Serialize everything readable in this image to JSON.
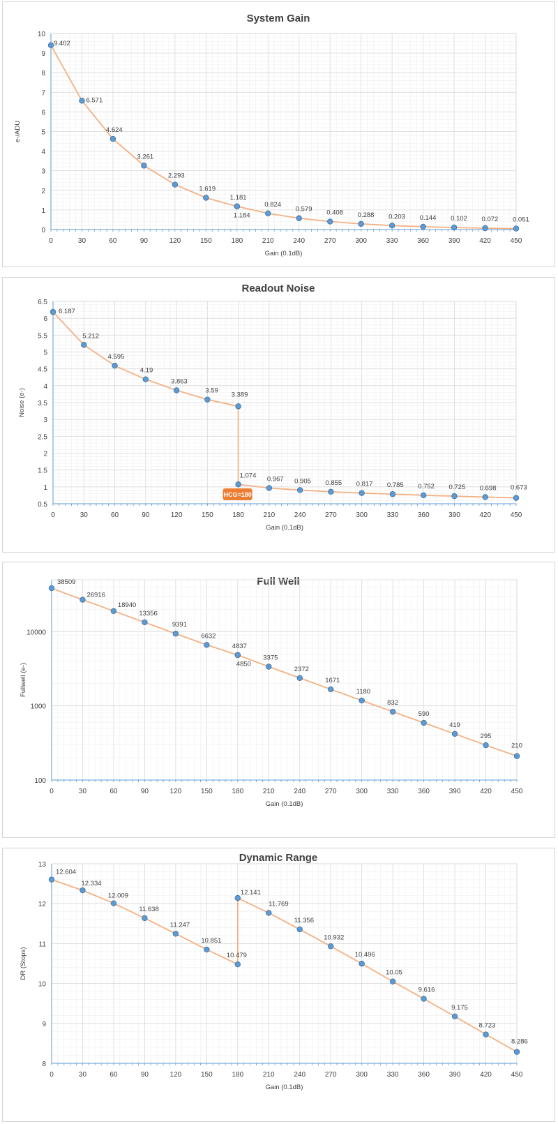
{
  "chart_data": [
    {
      "type": "line",
      "title": "System Gain",
      "xlabel": "Gain (0.1dB)",
      "ylabel": "e-/ADU",
      "x": [
        0,
        30,
        60,
        90,
        120,
        150,
        180,
        180,
        210,
        240,
        270,
        300,
        330,
        360,
        390,
        420,
        450
      ],
      "series": [
        {
          "values": [
            9.402,
            6.571,
            4.624,
            3.261,
            2.293,
            1.619,
            1.181,
            1.184,
            0.824,
            0.579,
            0.408,
            0.288,
            0.203,
            0.144,
            0.102,
            0.072,
            0.051
          ]
        }
      ],
      "xticks": [
        "0",
        "30",
        "60",
        "90",
        "120",
        "150",
        "180",
        "210",
        "240",
        "270",
        "300",
        "330",
        "360",
        "390",
        "420",
        "450"
      ],
      "yticks": [
        "0",
        "1",
        "2",
        "3",
        "4",
        "5",
        "6",
        "7",
        "8",
        "9",
        "10"
      ],
      "ylim": [
        0,
        10
      ],
      "xlim": [
        0,
        450
      ],
      "scale": "linear",
      "grid": true
    },
    {
      "type": "line",
      "title": "Readout Noise",
      "xlabel": "Gain (0.1dB)",
      "ylabel": "Noise (e-)",
      "x": [
        0,
        30,
        60,
        90,
        120,
        150,
        180,
        180,
        210,
        240,
        270,
        300,
        330,
        360,
        390,
        420,
        450
      ],
      "series": [
        {
          "values": [
            6.187,
            5.212,
            4.595,
            4.19,
            3.863,
            3.59,
            3.389,
            1.074,
            0.967,
            0.905,
            0.855,
            0.817,
            0.785,
            0.752,
            0.725,
            0.698,
            0.673
          ]
        }
      ],
      "xticks": [
        "0",
        "30",
        "60",
        "90",
        "120",
        "150",
        "180",
        "210",
        "240",
        "270",
        "300",
        "330",
        "360",
        "390",
        "420",
        "450"
      ],
      "yticks": [
        "0.5",
        "1",
        "1.5",
        "2",
        "2.5",
        "3",
        "3.5",
        "4",
        "4.5",
        "5",
        "5.5",
        "6",
        "6.5"
      ],
      "ylim": [
        0.5,
        6.5
      ],
      "xlim": [
        0,
        450
      ],
      "scale": "linear",
      "grid": true,
      "annotation": {
        "text": "HCG=180",
        "x": 180,
        "color": "#ED7D31"
      }
    },
    {
      "type": "line",
      "title": "Full Well",
      "xlabel": "Gain (0.1dB)",
      "ylabel": "Fullwell (e-)",
      "x": [
        0,
        30,
        60,
        90,
        120,
        150,
        180,
        180,
        210,
        240,
        270,
        300,
        330,
        360,
        390,
        420,
        450
      ],
      "series": [
        {
          "values": [
            38509,
            26916,
            18940,
            13356,
            9391,
            6632,
            4837,
            4850,
            3375,
            2372,
            1671,
            1180,
            832,
            590,
            419,
            295,
            210
          ]
        }
      ],
      "xticks": [
        "0",
        "30",
        "60",
        "90",
        "120",
        "150",
        "180",
        "210",
        "240",
        "270",
        "300",
        "330",
        "360",
        "390",
        "420",
        "450"
      ],
      "yticks": [
        "100",
        "1000",
        "10000"
      ],
      "ylim": [
        100,
        50000
      ],
      "xlim": [
        0,
        450
      ],
      "scale": "log",
      "grid": true
    },
    {
      "type": "line",
      "title": "Dynamic Range",
      "xlabel": "Gain (0.1dB)",
      "ylabel": "DR (Stops)",
      "x": [
        0,
        30,
        60,
        90,
        120,
        150,
        180,
        180,
        210,
        240,
        270,
        300,
        330,
        360,
        390,
        420,
        450
      ],
      "series": [
        {
          "values": [
            12.604,
            12.334,
            12.009,
            11.638,
            11.247,
            10.851,
            10.479,
            12.141,
            11.769,
            11.356,
            10.932,
            10.496,
            10.05,
            9.616,
            9.175,
            8.723,
            8.286
          ]
        }
      ],
      "xticks": [
        "0",
        "30",
        "60",
        "90",
        "120",
        "150",
        "180",
        "210",
        "240",
        "270",
        "300",
        "330",
        "360",
        "390",
        "420",
        "450"
      ],
      "yticks": [
        "8",
        "9",
        "10",
        "11",
        "12",
        "13"
      ],
      "ylim": [
        8,
        13
      ],
      "xlim": [
        0,
        450
      ],
      "scale": "linear",
      "grid": true
    }
  ],
  "colors": {
    "line": "#F4B183",
    "marker": "#5B9BD5",
    "marker_edge": "#41719C",
    "grid_major": "#D9D9D9",
    "grid_minor": "#EFEFEF",
    "axis": "#5B9BD5",
    "badge": "#ED7D31"
  }
}
